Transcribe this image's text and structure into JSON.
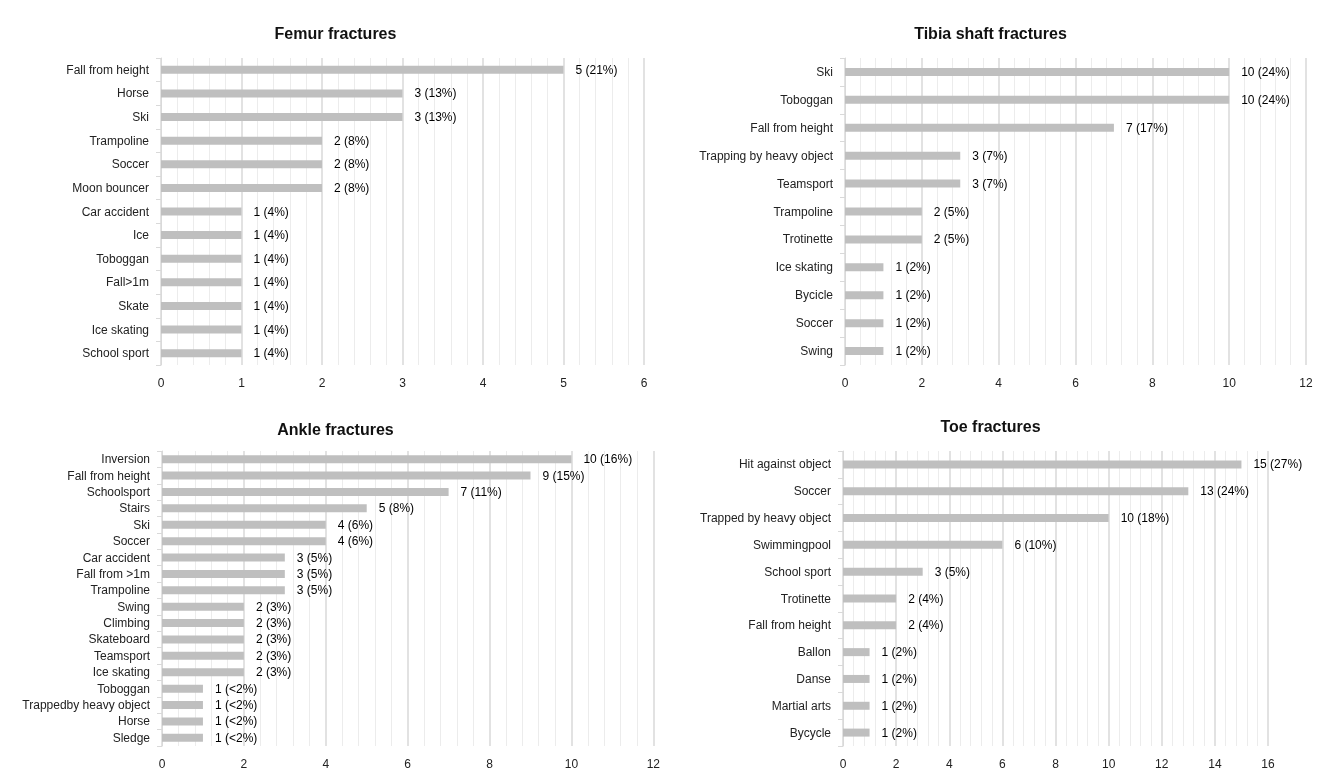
{
  "chart_data": [
    {
      "type": "bar",
      "orientation": "horizontal",
      "title": "Femur fractures",
      "categories": [
        "Fall from height",
        "Horse",
        "Ski",
        "Trampoline",
        "Soccer",
        "Moon bouncer",
        "Car accident",
        "Ice",
        "Toboggan",
        "Fall>1m",
        "Skate",
        "Ice skating",
        "School sport"
      ],
      "values": [
        5,
        3,
        3,
        2,
        2,
        2,
        1,
        1,
        1,
        1,
        1,
        1,
        1
      ],
      "value_labels": [
        "5 (21%)",
        "3 (13%)",
        "3 (13%)",
        "2 (8%)",
        "2 (8%)",
        "2 (8%)",
        "1 (4%)",
        "1 (4%)",
        "1 (4%)",
        "1 (4%)",
        "1 (4%)",
        "1 (4%)",
        "1 (4%)"
      ],
      "color": "#bfbfbf",
      "xlim": [
        0,
        6
      ],
      "xticks": [
        0,
        1,
        2,
        3,
        4,
        5,
        6
      ],
      "grid": "x"
    },
    {
      "type": "bar",
      "orientation": "horizontal",
      "title": "Tibia shaft fractures",
      "categories": [
        "Ski",
        "Toboggan",
        "Fall from height",
        "Trapping by heavy object",
        "Teamsport",
        "Trampoline",
        "Trotinette",
        "Ice skating",
        "Bycicle",
        "Soccer",
        "Swing"
      ],
      "values": [
        10,
        10,
        7,
        3,
        3,
        2,
        2,
        1,
        1,
        1,
        1
      ],
      "value_labels": [
        "10 (24%)",
        "10 (24%)",
        "7 (17%)",
        "3 (7%)",
        "3 (7%)",
        "2 (5%)",
        "2 (5%)",
        "1 (2%)",
        "1 (2%)",
        "1 (2%)",
        "1 (2%)"
      ],
      "color": "#bfbfbf",
      "xlim": [
        0,
        12
      ],
      "xticks": [
        0,
        2,
        4,
        6,
        8,
        10,
        12
      ],
      "grid": "x"
    },
    {
      "type": "bar",
      "orientation": "horizontal",
      "title": "Ankle fractures",
      "categories": [
        "Inversion",
        "Fall from height",
        "Schoolsport",
        "Stairs",
        "Ski",
        "Soccer",
        "Car accident",
        "Fall from >1m",
        "Trampoline",
        "Swing",
        "Climbing",
        "Skateboard",
        "Teamsport",
        "Ice skating",
        "Toboggan",
        "Trappedby heavy object",
        "Horse",
        "Sledge"
      ],
      "values": [
        10,
        9,
        7,
        5,
        4,
        4,
        3,
        3,
        3,
        2,
        2,
        2,
        2,
        2,
        1,
        1,
        1,
        1
      ],
      "value_labels": [
        "10 (16%)",
        "9 (15%)",
        "7 (11%)",
        "5 (8%)",
        "4 (6%)",
        "4 (6%)",
        "3 (5%)",
        "3 (5%)",
        "3 (5%)",
        "2 (3%)",
        "2 (3%)",
        "2 (3%)",
        "2 (3%)",
        "2 (3%)",
        "1 (<2%)",
        "1 (<2%)",
        "1 (<2%)",
        "1 (<2%)"
      ],
      "color": "#bfbfbf",
      "xlim": [
        0,
        12
      ],
      "xticks": [
        0,
        2,
        4,
        6,
        8,
        10,
        12
      ],
      "grid": "x"
    },
    {
      "type": "bar",
      "orientation": "horizontal",
      "title": "Toe fractures",
      "categories": [
        "Hit against object",
        "Soccer",
        "Trapped by heavy object",
        "Swimmingpool",
        "School sport",
        "Trotinette",
        "Fall from height",
        "Ballon",
        "Danse",
        "Martial arts",
        "Bycycle"
      ],
      "values": [
        15,
        13,
        10,
        6,
        3,
        2,
        2,
        1,
        1,
        1,
        1
      ],
      "value_labels": [
        "15 (27%)",
        "13 (24%)",
        "10 (18%)",
        "6 (10%)",
        "3 (5%)",
        "2 (4%)",
        "2 (4%)",
        "1 (2%)",
        "1 (2%)",
        "1 (2%)",
        "1 (2%)"
      ],
      "color": "#bfbfbf",
      "xlim": [
        0,
        16
      ],
      "xticks": [
        0,
        2,
        4,
        6,
        8,
        10,
        12,
        14,
        16
      ],
      "grid": "x"
    }
  ]
}
